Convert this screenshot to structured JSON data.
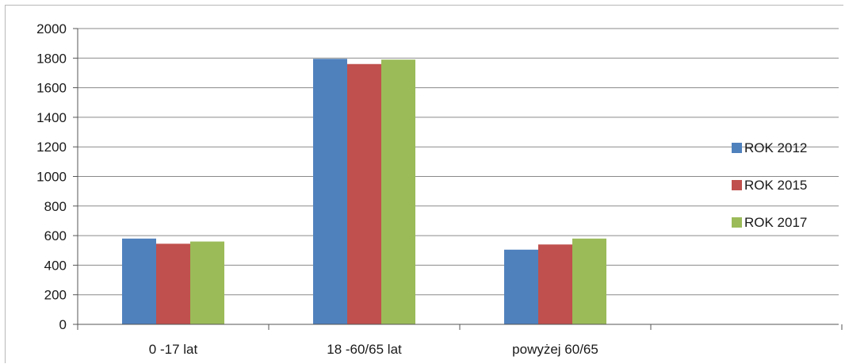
{
  "chart_data": {
    "type": "bar",
    "categories": [
      "0 -17 lat",
      "18 -60/65 lat",
      "powyżej 60/65"
    ],
    "series": [
      {
        "name": "ROK 2012",
        "values": [
          580,
          1795,
          505
        ],
        "color": "#4f81bd"
      },
      {
        "name": "ROK 2015",
        "values": [
          545,
          1760,
          540
        ],
        "color": "#c0504d"
      },
      {
        "name": "ROK 2017",
        "values": [
          560,
          1790,
          580
        ],
        "color": "#9bbb59"
      }
    ],
    "yticks": [
      "0",
      "200",
      "400",
      "600",
      "800",
      "1000",
      "1200",
      "1400",
      "1600",
      "1800",
      "2000"
    ],
    "ylim": [
      0,
      2000
    ],
    "grid": true,
    "legend_position": "right"
  }
}
